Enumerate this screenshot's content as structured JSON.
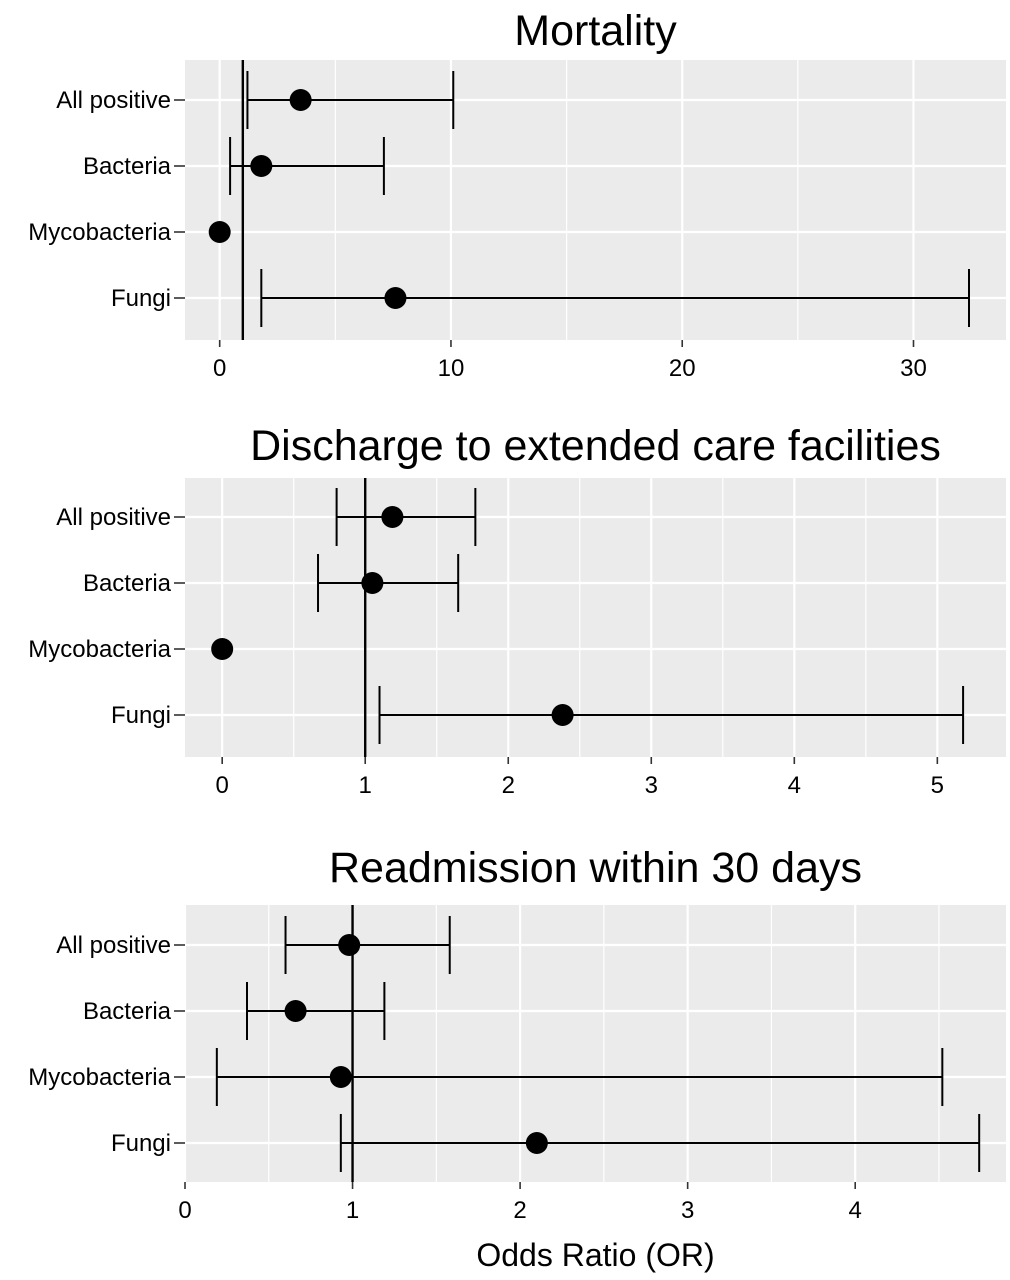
{
  "chart_data": [
    {
      "type": "forest",
      "title": "Mortality",
      "categories": [
        "All positive",
        "Bacteria",
        "Mycobacteria",
        "Fungi"
      ],
      "reference_line": 1,
      "xlim": [
        -1.5,
        34
      ],
      "xticks": [
        0,
        10,
        20,
        30
      ],
      "grid": true,
      "points": [
        {
          "category": "All positive",
          "or": 3.5,
          "lower": 1.2,
          "upper": 10.1
        },
        {
          "category": "Bacteria",
          "or": 1.8,
          "lower": 0.45,
          "upper": 7.1
        },
        {
          "category": "Mycobacteria",
          "or": 0,
          "lower": null,
          "upper": null
        },
        {
          "category": "Fungi",
          "or": 7.6,
          "lower": 1.8,
          "upper": 32.4
        }
      ]
    },
    {
      "type": "forest",
      "title": "Discharge to extended care facilities",
      "categories": [
        "All positive",
        "Bacteria",
        "Mycobacteria",
        "Fungi"
      ],
      "reference_line": 1,
      "xlim": [
        -0.26,
        5.48
      ],
      "xticks": [
        0,
        1,
        2,
        3,
        4,
        5
      ],
      "grid": true,
      "points": [
        {
          "category": "All positive",
          "or": 1.19,
          "lower": 0.8,
          "upper": 1.77
        },
        {
          "category": "Bacteria",
          "or": 1.05,
          "lower": 0.67,
          "upper": 1.65
        },
        {
          "category": "Mycobacteria",
          "or": 0,
          "lower": null,
          "upper": null
        },
        {
          "category": "Fungi",
          "or": 2.38,
          "lower": 1.1,
          "upper": 5.18
        }
      ]
    },
    {
      "type": "forest",
      "title": "Readmission within 30 days",
      "categories": [
        "All positive",
        "Bacteria",
        "Mycobacteria",
        "Fungi"
      ],
      "reference_line": 1,
      "xlim": [
        0,
        4.9
      ],
      "xticks": [
        0,
        1,
        2,
        3,
        4
      ],
      "xlabel": "Odds Ratio (OR)",
      "grid": true,
      "points": [
        {
          "category": "All positive",
          "or": 0.98,
          "lower": 0.6,
          "upper": 1.58
        },
        {
          "category": "Bacteria",
          "or": 0.66,
          "lower": 0.37,
          "upper": 1.19
        },
        {
          "category": "Mycobacteria",
          "or": 0.93,
          "lower": 0.19,
          "upper": 4.52
        },
        {
          "category": "Fungi",
          "or": 2.1,
          "lower": 0.93,
          "upper": 4.74
        }
      ]
    }
  ]
}
